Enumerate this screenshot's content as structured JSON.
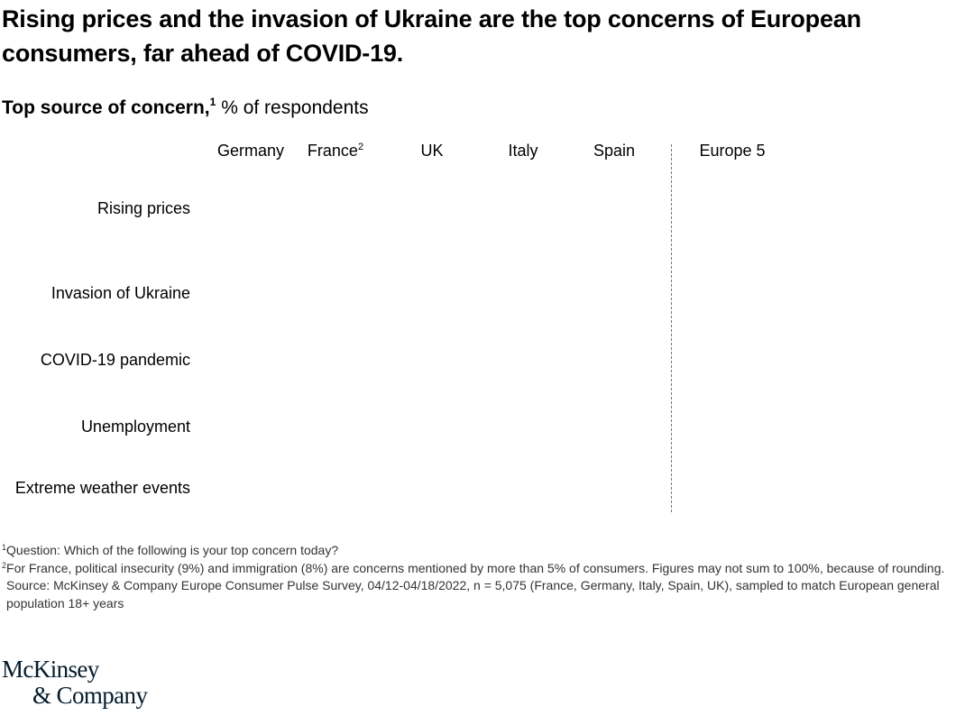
{
  "title": "Rising prices and the invasion of Ukraine are the top concerns of European consumers, far ahead of COVID-19.",
  "chart_data": {
    "type": "table",
    "title": "Top source of concern,",
    "title_sup": "1",
    "unit": "% of respondents",
    "columns": [
      {
        "label": "Germany",
        "sup": ""
      },
      {
        "label": "France",
        "sup": "2"
      },
      {
        "label": "UK",
        "sup": ""
      },
      {
        "label": "Italy",
        "sup": ""
      },
      {
        "label": "Spain",
        "sup": ""
      },
      {
        "label": "Europe 5",
        "sup": ""
      }
    ],
    "rows": [
      "Rising prices",
      "Invasion of Ukraine",
      "COVID-19 pandemic",
      "Unemployment",
      "Extreme weather events"
    ]
  },
  "footnotes": {
    "note1_sup": "1",
    "note1": "Question: Which of the following is your top concern today?",
    "note2_sup": "2",
    "note2": "For France, political insecurity (9%) and immigration (8%) are concerns mentioned by more than 5% of consumers. Figures may not sum to 100%, because of rounding.",
    "source": "Source: McKinsey & Company Europe Consumer Pulse Survey, 04/12-04/18/2022, n = 5,075 (France, Germany, Italy, Spain, UK), sampled to match European general population 18+ years"
  },
  "logo": {
    "line1": "McKinsey",
    "line2": "& Company"
  }
}
